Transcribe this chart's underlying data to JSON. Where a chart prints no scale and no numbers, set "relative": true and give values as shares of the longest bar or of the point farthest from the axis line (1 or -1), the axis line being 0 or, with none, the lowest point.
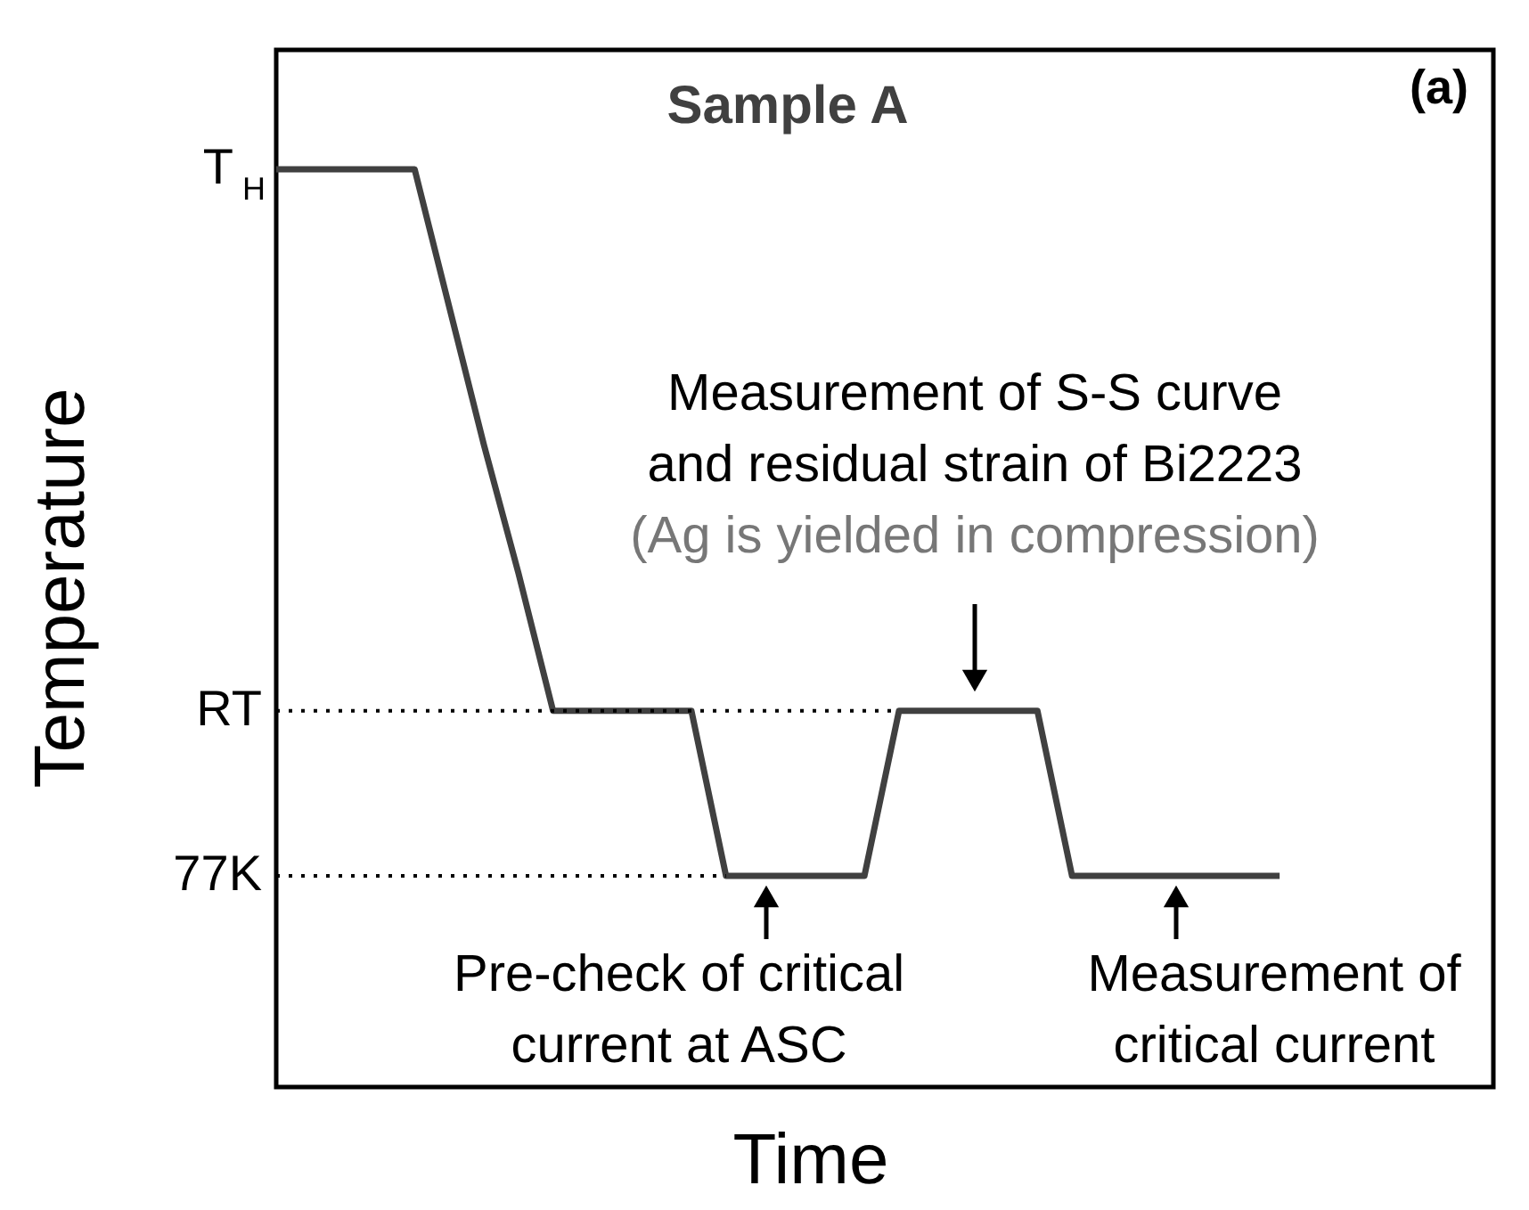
{
  "chart_data": {
    "type": "line",
    "relative": true,
    "title": "Sample A",
    "xlabel": "Time",
    "ylabel": "Temperature",
    "categories": [
      null,
      null,
      null,
      null,
      null,
      null,
      null,
      null,
      null,
      null,
      null,
      null,
      null,
      null,
      null,
      null,
      null,
      null,
      null,
      null,
      null,
      null,
      null,
      null,
      null,
      null,
      null,
      null,
      null,
      null
    ],
    "series": [
      {
        "color": "#404040",
        "values": [
          1,
          1,
          1,
          1,
          1,
          0.85,
          0.7,
          0.56,
          0.41,
          0.41,
          0.41,
          0.41,
          0.41,
          0.23,
          0.23,
          0.23,
          0.23,
          0.23,
          0.41,
          0.41,
          0.41,
          0.41,
          0.41,
          0.23,
          0.23,
          0.23,
          0.23,
          0.23,
          0.23,
          0.23
        ]
      }
    ],
    "ref_lines": [
      {
        "axis": "y",
        "value": 0.41,
        "label": "RT",
        "line_style": "dotted",
        "color": "#000000"
      },
      {
        "axis": "y",
        "value": 0.23,
        "label": "77K",
        "line_style": "dotted",
        "color": "#000000"
      }
    ],
    "annotations": [
      "(a)",
      "T$_{H}$",
      "Measurement of S-S curve\nand residual strain of Bi2223",
      "(Ag is yielded in compression)",
      "Pre-check of critical\ncurrent at ASC",
      "Measurement of\ncritical current"
    ],
    "marker": "none",
    "line_style": "solid"
  }
}
